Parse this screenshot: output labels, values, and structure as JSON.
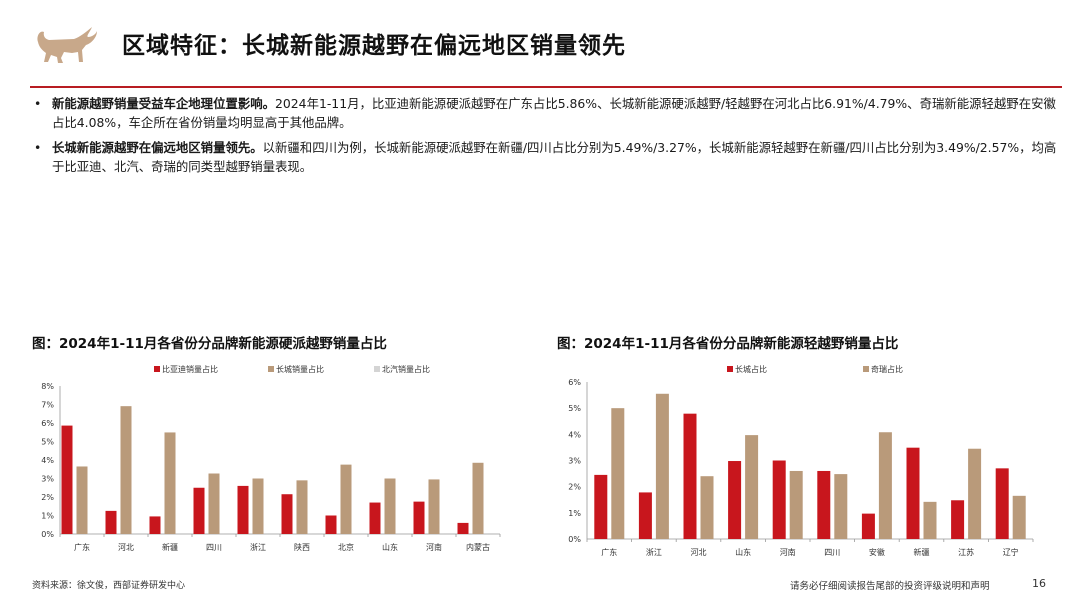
{
  "header": {
    "title": "区域特征：长城新能源越野在偏远地区销量领先"
  },
  "bullets": [
    {
      "lead": "新能源越野销量受益车企地理位置影响。",
      "text": "2024年1-11月，比亚迪新能源硬派越野在广东占比5.86%、长城新能源硬派越野/轻越野在河北占比6.91%/4.79%、奇瑞新能源轻越野在安徽占比4.08%，车企所在省份销量均明显高于其他品牌。"
    },
    {
      "lead": "长城新能源越野在偏远地区销量领先。",
      "text": "以新疆和四川为例，长城新能源硬派越野在新疆/四川占比分别为5.49%/3.27%，长城新能源轻越野在新疆/四川占比分别为3.49%/2.57%，均高于比亚迪、北汽、奇瑞的同类型越野销量表现。"
    }
  ],
  "chart_data": [
    {
      "type": "bar",
      "title": "图：2024年1-11月各省份分品牌新能源硬派越野销量占比",
      "categories": [
        "广东",
        "河北",
        "新疆",
        "四川",
        "浙江",
        "陕西",
        "北京",
        "山东",
        "河南",
        "内蒙古"
      ],
      "series": [
        {
          "name": "比亚迪销量占比",
          "color": "#c8161d",
          "values": [
            5.86,
            1.25,
            0.95,
            2.5,
            2.6,
            2.15,
            1.0,
            1.7,
            1.75,
            0.6
          ]
        },
        {
          "name": "长城销量占比",
          "color": "#b99a7a",
          "values": [
            3.65,
            6.91,
            5.49,
            3.27,
            3.0,
            2.9,
            3.75,
            3.0,
            2.95,
            3.85
          ]
        },
        {
          "name": "北汽销量占比",
          "color": "#d4d4d4",
          "values": [
            0.05,
            0.05,
            0.05,
            0.05,
            0.05,
            0.05,
            0.05,
            0.05,
            0.05,
            0.05
          ]
        }
      ],
      "ylim": [
        0,
        8
      ],
      "yticks": [
        "0%",
        "1%",
        "2%",
        "3%",
        "4%",
        "5%",
        "6%",
        "7%",
        "8%"
      ],
      "xlabel": "",
      "ylabel": "",
      "legend": "top"
    },
    {
      "type": "bar",
      "title": "图：2024年1-11月各省份分品牌新能源轻越野销量占比",
      "categories": [
        "广东",
        "浙江",
        "河北",
        "山东",
        "河南",
        "四川",
        "安徽",
        "新疆",
        "江苏",
        "辽宁"
      ],
      "series": [
        {
          "name": "长城占比",
          "color": "#c8161d",
          "values": [
            2.45,
            1.78,
            4.79,
            2.98,
            3.0,
            2.6,
            0.97,
            3.49,
            1.48,
            2.7
          ]
        },
        {
          "name": "奇瑞占比",
          "color": "#b99a7a",
          "values": [
            5.0,
            5.55,
            2.4,
            3.97,
            2.6,
            2.48,
            4.08,
            1.42,
            3.45,
            1.65
          ]
        }
      ],
      "ylim": [
        0,
        6
      ],
      "yticks": [
        "0%",
        "1%",
        "2%",
        "3%",
        "4%",
        "5%",
        "6%"
      ],
      "xlabel": "",
      "ylabel": "",
      "legend": "top"
    }
  ],
  "footer": {
    "source": "资料来源：徐文俊，西部证券研发中心",
    "disclaimer": "请务必仔细阅读报告尾部的投资评级说明和声明",
    "page": "16"
  },
  "colors": {
    "accent": "#b81c22",
    "logo": "#c8a88a"
  }
}
